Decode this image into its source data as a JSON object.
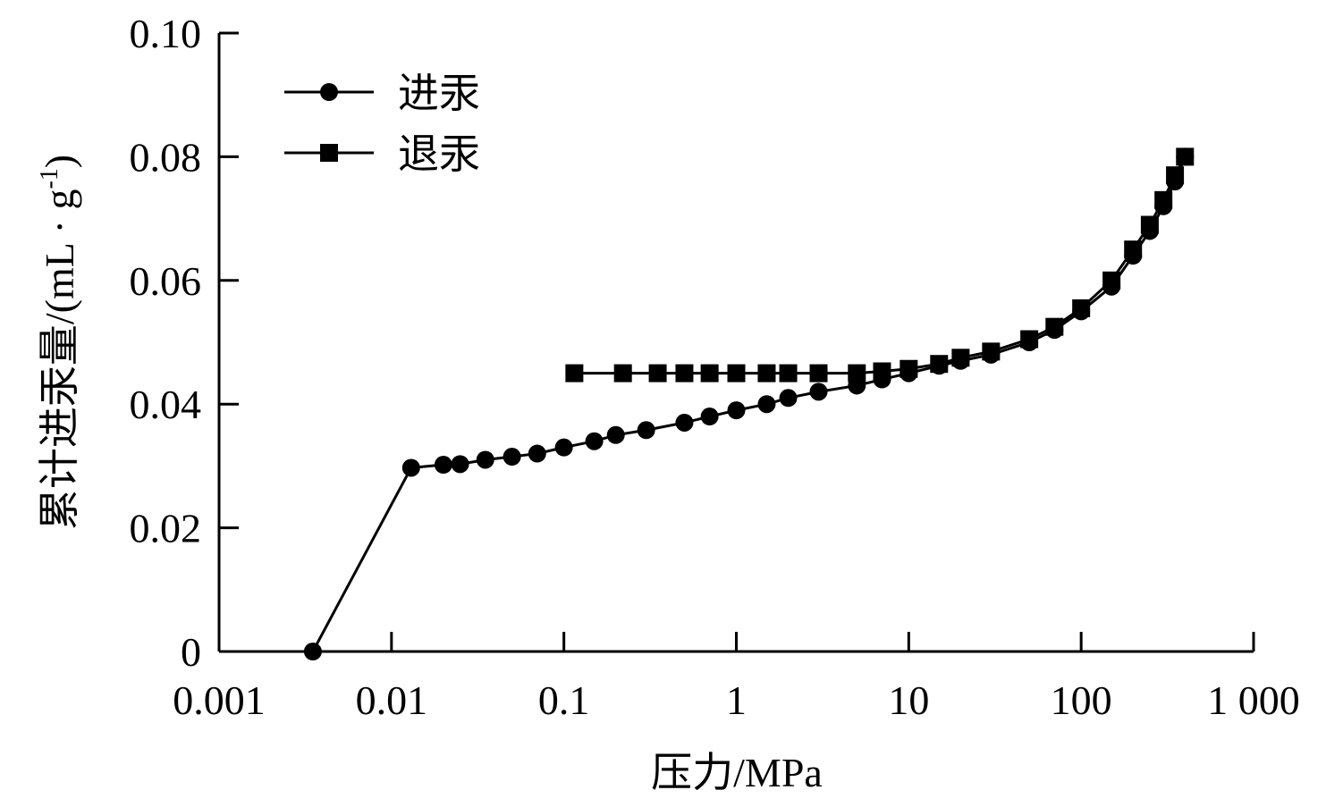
{
  "chart_data": {
    "type": "line",
    "xlabel": "压力/MPa",
    "ylabel": "累计进汞量/(mL · g",
    "ylabel_sup": "-1",
    "ylabel_end": ")",
    "x_scale": "log",
    "xlim": [
      0.001,
      1000
    ],
    "ylim": [
      0,
      0.1
    ],
    "x_ticks": [
      0.001,
      0.01,
      0.1,
      1,
      10,
      100,
      1000
    ],
    "x_tick_labels": [
      "0.001",
      "0.01",
      "0.1",
      "1",
      "10",
      "100",
      "1 000"
    ],
    "y_ticks": [
      0,
      0.02,
      0.04,
      0.06,
      0.08,
      0.1
    ],
    "y_tick_labels": [
      "0",
      "0.02",
      "0.04",
      "0.06",
      "0.08",
      "0.10"
    ],
    "grid": false,
    "legend_position": "top-left",
    "series": [
      {
        "name": "进汞",
        "marker": "circle",
        "color": "#000000",
        "x": [
          0.0035,
          0.013,
          0.02,
          0.025,
          0.035,
          0.05,
          0.07,
          0.1,
          0.15,
          0.2,
          0.3,
          0.5,
          0.7,
          1,
          1.5,
          2,
          3,
          5,
          7,
          10,
          15,
          20,
          30,
          50,
          70,
          100,
          150,
          200,
          250,
          300,
          350,
          400
        ],
        "y": [
          0,
          0.0297,
          0.0302,
          0.0303,
          0.031,
          0.0315,
          0.032,
          0.033,
          0.034,
          0.035,
          0.0358,
          0.037,
          0.038,
          0.039,
          0.04,
          0.041,
          0.042,
          0.043,
          0.044,
          0.045,
          0.0462,
          0.047,
          0.048,
          0.05,
          0.052,
          0.055,
          0.059,
          0.064,
          0.068,
          0.072,
          0.076,
          0.08
        ]
      },
      {
        "name": "退汞",
        "marker": "square",
        "color": "#000000",
        "x": [
          400,
          350,
          300,
          250,
          200,
          150,
          100,
          70,
          50,
          30,
          20,
          15,
          10,
          7,
          5,
          3,
          2,
          1.5,
          1,
          0.7,
          0.5,
          0.35,
          0.22,
          0.115
        ],
        "y": [
          0.08,
          0.077,
          0.073,
          0.069,
          0.065,
          0.06,
          0.0555,
          0.0525,
          0.0505,
          0.0485,
          0.0475,
          0.0465,
          0.0457,
          0.0453,
          0.045,
          0.045,
          0.045,
          0.045,
          0.045,
          0.045,
          0.045,
          0.045,
          0.045,
          0.045
        ]
      }
    ]
  }
}
